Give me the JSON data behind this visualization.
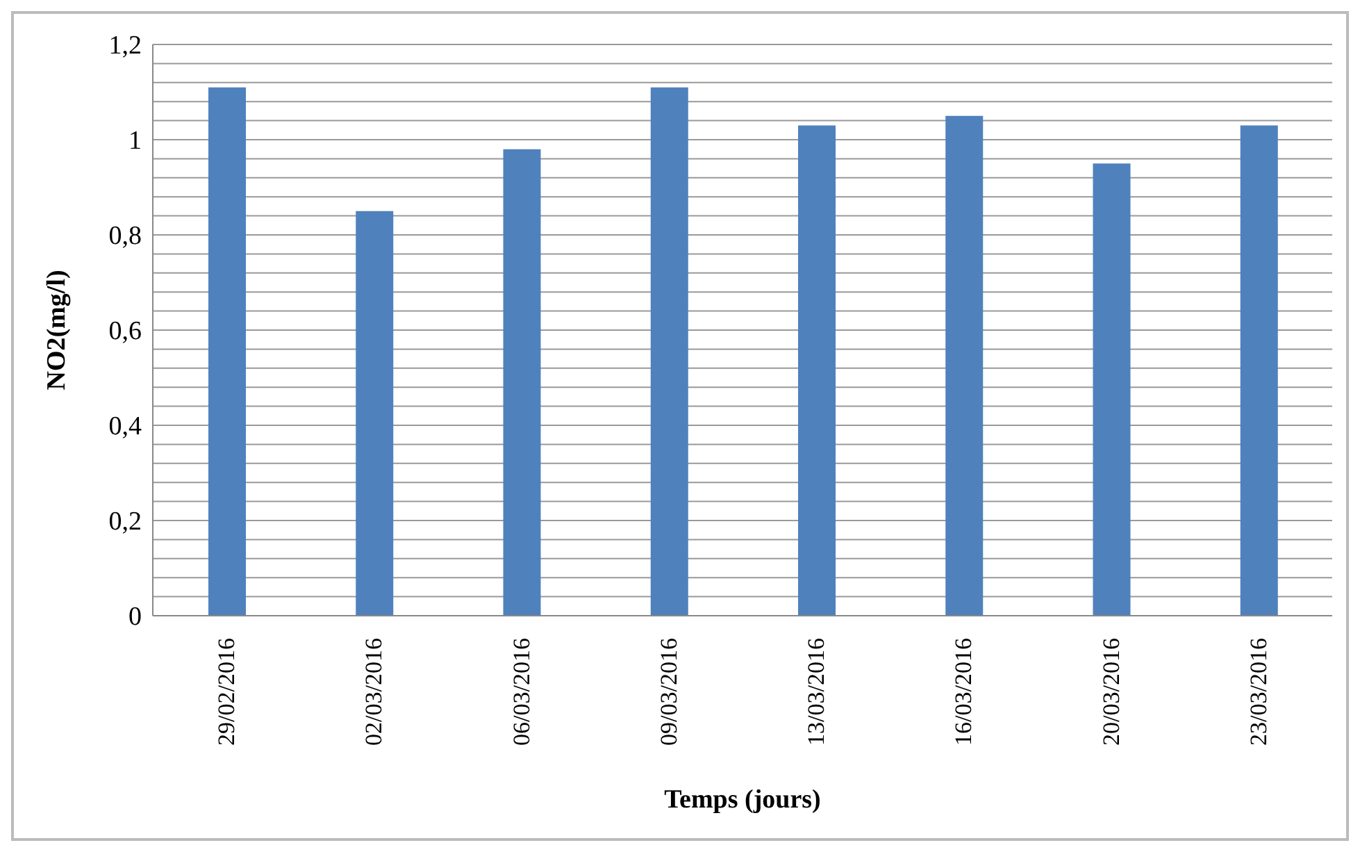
{
  "chart_data": {
    "type": "bar",
    "xlabel": "Temps (jours)",
    "ylabel": "NO2(mg/l)",
    "categories": [
      "29/02/2016",
      "02/03/2016",
      "06/03/2016",
      "09/03/2016",
      "13/03/2016",
      "16/03/2016",
      "20/03/2016",
      "23/03/2016"
    ],
    "values": [
      1.11,
      0.85,
      0.98,
      1.11,
      1.03,
      1.05,
      0.95,
      1.03
    ],
    "color": "#4f81bd",
    "ylim": [
      0,
      1.2
    ],
    "yticks": [
      0,
      {
        "value": 0.04,
        "label": null
      },
      {
        "value": 0.08,
        "label": null
      },
      {
        "value": 0.12,
        "label": null
      },
      {
        "value": 0.16,
        "label": null
      },
      {
        "value": 0.2,
        "label": "0,2"
      },
      {
        "value": 0.24,
        "label": null
      },
      {
        "value": 0.28,
        "label": null
      },
      {
        "value": 0.32,
        "label": null
      },
      {
        "value": 0.36,
        "label": null
      },
      {
        "value": 0.4,
        "label": "0,4"
      },
      {
        "value": 0.44,
        "label": null
      },
      {
        "value": 0.48,
        "label": null
      },
      {
        "value": 0.52,
        "label": null
      },
      {
        "value": 0.56,
        "label": null
      },
      {
        "value": 0.6,
        "label": "0,6"
      },
      {
        "value": 0.64,
        "label": null
      },
      {
        "value": 0.68,
        "label": null
      },
      {
        "value": 0.72,
        "label": null
      },
      {
        "value": 0.76,
        "label": null
      },
      {
        "value": 0.8,
        "label": "0,8"
      },
      {
        "value": 0.84,
        "label": null
      },
      {
        "value": 0.88,
        "label": null
      },
      {
        "value": 0.92,
        "label": null
      },
      {
        "value": 0.96,
        "label": null
      },
      1,
      {
        "value": 1.04,
        "label": null
      },
      {
        "value": 1.08,
        "label": null
      },
      {
        "value": 1.12,
        "label": null
      },
      {
        "value": 1.16,
        "label": null
      },
      {
        "value": 1.2,
        "label": "1,2"
      }
    ],
    "grid": "y"
  }
}
